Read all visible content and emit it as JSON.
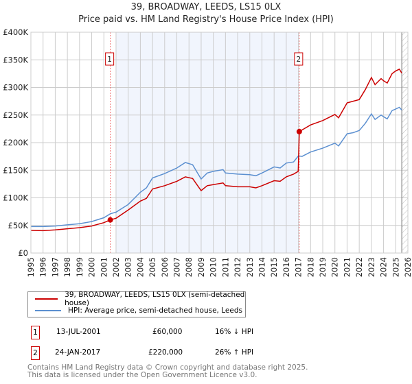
{
  "chart_data": {
    "type": "line",
    "title": "39, BROADWAY, LEEDS, LS15 0LX",
    "subtitle": "Price paid vs. HM Land Registry's House Price Index (HPI)",
    "xlim": [
      1995,
      2026
    ],
    "ylim": [
      0,
      400000
    ],
    "y_ticks": [
      {
        "v": 0,
        "label": "£0"
      },
      {
        "v": 50000,
        "label": "£50K"
      },
      {
        "v": 100000,
        "label": "£100K"
      },
      {
        "v": 150000,
        "label": "£150K"
      },
      {
        "v": 200000,
        "label": "£200K"
      },
      {
        "v": 250000,
        "label": "£250K"
      },
      {
        "v": 300000,
        "label": "£300K"
      },
      {
        "v": 350000,
        "label": "£350K"
      },
      {
        "v": 400000,
        "label": "£400K"
      }
    ],
    "x_ticks": [
      "1995",
      "1996",
      "1997",
      "1998",
      "1999",
      "2000",
      "2001",
      "2002",
      "2003",
      "2004",
      "2005",
      "2006",
      "2007",
      "2008",
      "2009",
      "2010",
      "2011",
      "2012",
      "2013",
      "2014",
      "2015",
      "2016",
      "2017",
      "2018",
      "2019",
      "2020",
      "2021",
      "2022",
      "2023",
      "2024",
      "2025",
      "2026"
    ],
    "grid": true,
    "shaded_range": [
      2002.0,
      2017.07
    ],
    "forecast_hatch_from": 2025.5,
    "series": [
      {
        "name": "39, BROADWAY, LEEDS, LS15 0LX (semi-detached house)",
        "color": "#cc0000",
        "x": [
          1995,
          1996,
          1997,
          1998,
          1999,
          2000,
          2001,
          2001.53,
          2002,
          2003,
          2004,
          2004.5,
          2005,
          2006,
          2007,
          2007.7,
          2008.3,
          2009,
          2009.5,
          2010,
          2010.8,
          2011,
          2012,
          2013,
          2013.5,
          2014,
          2015,
          2015.5,
          2016,
          2016.6,
          2016.98,
          2017.07,
          2018,
          2019,
          2020,
          2020.3,
          2021,
          2021.5,
          2022,
          2022.5,
          2023,
          2023.3,
          2023.8,
          2024,
          2024.3,
          2024.7,
          2025,
          2025.3,
          2025.5
        ],
        "y": [
          41000,
          40500,
          42000,
          44000,
          46000,
          49000,
          55000,
          60000,
          63000,
          78000,
          94000,
          99000,
          116000,
          122000,
          130000,
          138000,
          135000,
          113000,
          122000,
          124000,
          127000,
          122000,
          120000,
          120000,
          118000,
          122000,
          131000,
          130000,
          138000,
          143000,
          148000,
          220000,
          232000,
          240000,
          251000,
          245000,
          272000,
          275000,
          278000,
          296000,
          318000,
          305000,
          316000,
          312000,
          308000,
          325000,
          330000,
          333000,
          326000
        ]
      },
      {
        "name": "HPI: Average price, semi-detached house, Leeds",
        "color": "#5b8fd0",
        "x": [
          1995,
          1996,
          1997,
          1998,
          1999,
          2000,
          2001,
          2001.53,
          2002,
          2003,
          2004,
          2004.5,
          2005,
          2006,
          2007,
          2007.7,
          2008.3,
          2009,
          2009.5,
          2010,
          2010.8,
          2011,
          2012,
          2013,
          2013.5,
          2014,
          2015,
          2015.5,
          2016,
          2016.6,
          2017,
          2017.3,
          2018,
          2019,
          2020,
          2020.3,
          2021,
          2021.5,
          2022,
          2022.5,
          2023,
          2023.3,
          2023.8,
          2024,
          2024.3,
          2024.7,
          2025,
          2025.3,
          2025.5
        ],
        "y": [
          48000,
          48000,
          49000,
          51000,
          53000,
          57000,
          64000,
          71000,
          74000,
          88000,
          110000,
          118000,
          136000,
          144000,
          154000,
          164000,
          160000,
          134000,
          145000,
          148000,
          151000,
          145000,
          143000,
          142000,
          140000,
          145000,
          156000,
          154000,
          163000,
          165000,
          176000,
          175000,
          183000,
          190000,
          199000,
          194000,
          216000,
          218000,
          222000,
          235000,
          252000,
          242000,
          250000,
          247000,
          243000,
          258000,
          261000,
          264000,
          259000
        ]
      }
    ],
    "sales": [
      {
        "label": "1",
        "x": 2001.53,
        "y": 60000
      },
      {
        "label": "2",
        "x": 2017.07,
        "y": 220000
      }
    ]
  },
  "legend": {
    "property": "39, BROADWAY, LEEDS, LS15 0LX (semi-detached house)",
    "hpi": "HPI: Average price, semi-detached house, Leeds"
  },
  "transactions": [
    {
      "num": "1",
      "date": "13-JUL-2001",
      "price": "£60,000",
      "hpi": "16% ↓ HPI"
    },
    {
      "num": "2",
      "date": "24-JAN-2017",
      "price": "£220,000",
      "hpi": "26% ↑ HPI"
    }
  ],
  "footer": {
    "line1": "Contains HM Land Registry data © Crown copyright and database right 2025.",
    "line2": "This data is licensed under the Open Government Licence v3.0."
  }
}
